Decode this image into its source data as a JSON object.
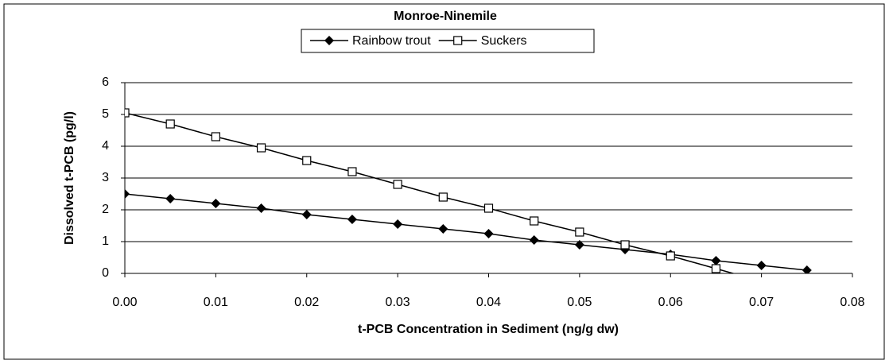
{
  "chart_data": {
    "type": "line",
    "title": "Monroe-Ninemile",
    "x_label": "t-PCB Concentration in Sediment (ng/g dw)",
    "y_label": "Dissolved t-PCB (pg/l)",
    "x": [
      0,
      0.005,
      0.01,
      0.015,
      0.02,
      0.025,
      0.03,
      0.035,
      0.04,
      0.045,
      0.05,
      0.055,
      0.06,
      0.065,
      0.07,
      0.075
    ],
    "series": [
      {
        "name": "Rainbow trout",
        "color": "#000000",
        "marker": "diamond",
        "values": [
          2.5,
          2.35,
          2.2,
          2.05,
          1.85,
          1.7,
          1.55,
          1.4,
          1.25,
          1.05,
          0.9,
          0.75,
          0.6,
          0.4,
          0.25,
          0.1
        ]
      },
      {
        "name": "Suckers",
        "color": "#000000",
        "marker": "square",
        "values": [
          5.05,
          4.7,
          4.3,
          3.95,
          3.55,
          3.2,
          2.8,
          2.4,
          2.05,
          1.65,
          1.3,
          0.9,
          0.55,
          0.15,
          -0.25,
          null
        ]
      }
    ],
    "xlim": [
      0,
      0.08
    ],
    "xticks": [
      {
        "value": 0,
        "label": "0.00"
      },
      0.01,
      0.02,
      0.03,
      0.04,
      0.05,
      0.06,
      0.07,
      0.08
    ],
    "ylim": [
      0,
      6
    ],
    "yticks": [
      0,
      1,
      2,
      3,
      4,
      5,
      6
    ],
    "grid": true,
    "legend": "top"
  }
}
